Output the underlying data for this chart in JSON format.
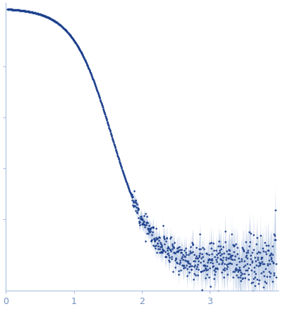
{
  "title": "",
  "xlabel": "",
  "ylabel": "",
  "xlim": [
    0,
    4.0
  ],
  "x_ticks": [
    0,
    1,
    2,
    3
  ],
  "dot_color": "#1c3f8c",
  "error_color": "#aabfdf",
  "dot_size_smooth": 3.0,
  "dot_size_noisy": 3.5,
  "background_color": "#ffffff",
  "figsize": [
    3.98,
    4.37
  ],
  "dpi": 100,
  "spine_color": "#aabfdf",
  "tick_color": "#aabfdf",
  "tick_label_color": "#7090c0",
  "I0": 1.0,
  "ylim": [
    -0.08,
    1.05
  ]
}
